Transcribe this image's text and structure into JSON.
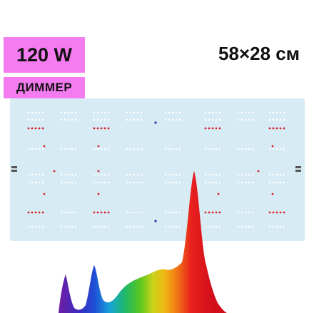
{
  "power_label": "120 W",
  "dimmer_label": "ДИММЕР",
  "size_label": "58×28 см",
  "colors": {
    "badge": "#f47bf0",
    "board": "#d6ebf3",
    "led_white": "#ffffff",
    "led_red": "#d61f2c",
    "led_blue": "#2a2ab0"
  },
  "icons": [
    "led-board-image",
    "spectrum-graph"
  ]
}
